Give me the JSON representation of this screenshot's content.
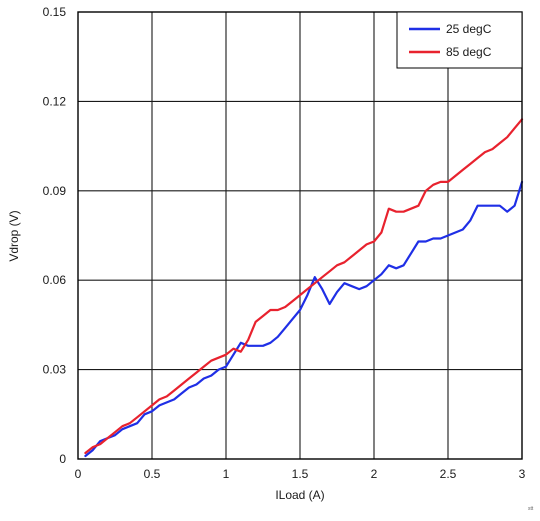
{
  "chart_data": {
    "type": "line",
    "title": "",
    "xlabel": "ILoad (A)",
    "ylabel": "Vdrop (V)",
    "xlim": [
      0,
      3
    ],
    "ylim": [
      0,
      0.15
    ],
    "xticks": [
      0,
      0.5,
      1,
      1.5,
      2,
      2.5,
      3
    ],
    "xtick_labels": [
      "0",
      "0.5",
      "1",
      "1.5",
      "2",
      "2.5",
      "3"
    ],
    "yticks": [
      0,
      0.03,
      0.06,
      0.09,
      0.12,
      0.15
    ],
    "ytick_labels": [
      "0",
      "0.03",
      "0.06",
      "0.09",
      "0.12",
      "0.15"
    ],
    "grid": true,
    "legend_position": "top-right",
    "corner_code": "stt",
    "series": [
      {
        "name": "25 degC",
        "color": "#1f2fe6",
        "x": [
          0.05,
          0.1,
          0.15,
          0.2,
          0.25,
          0.3,
          0.35,
          0.4,
          0.45,
          0.5,
          0.55,
          0.6,
          0.65,
          0.7,
          0.75,
          0.8,
          0.85,
          0.9,
          0.95,
          1.0,
          1.05,
          1.1,
          1.15,
          1.2,
          1.25,
          1.3,
          1.35,
          1.4,
          1.45,
          1.5,
          1.55,
          1.6,
          1.65,
          1.7,
          1.75,
          1.8,
          1.85,
          1.9,
          1.95,
          2.0,
          2.05,
          2.1,
          2.15,
          2.2,
          2.25,
          2.3,
          2.35,
          2.4,
          2.45,
          2.5,
          2.55,
          2.6,
          2.65,
          2.7,
          2.75,
          2.8,
          2.85,
          2.9,
          2.95,
          3.0
        ],
        "y": [
          0.001,
          0.003,
          0.006,
          0.007,
          0.008,
          0.01,
          0.011,
          0.012,
          0.015,
          0.016,
          0.018,
          0.019,
          0.02,
          0.022,
          0.024,
          0.025,
          0.027,
          0.028,
          0.03,
          0.031,
          0.035,
          0.039,
          0.038,
          0.038,
          0.038,
          0.039,
          0.041,
          0.044,
          0.047,
          0.05,
          0.055,
          0.061,
          0.057,
          0.052,
          0.056,
          0.059,
          0.058,
          0.057,
          0.058,
          0.06,
          0.062,
          0.065,
          0.064,
          0.065,
          0.069,
          0.073,
          0.073,
          0.074,
          0.074,
          0.075,
          0.076,
          0.077,
          0.08,
          0.085,
          0.085,
          0.085,
          0.085,
          0.083,
          0.085,
          0.093
        ]
      },
      {
        "name": "85 degC",
        "color": "#e8222e",
        "x": [
          0.05,
          0.1,
          0.15,
          0.2,
          0.25,
          0.3,
          0.35,
          0.4,
          0.45,
          0.5,
          0.55,
          0.6,
          0.65,
          0.7,
          0.75,
          0.8,
          0.85,
          0.9,
          0.95,
          1.0,
          1.05,
          1.1,
          1.15,
          1.2,
          1.25,
          1.3,
          1.35,
          1.4,
          1.45,
          1.5,
          1.55,
          1.6,
          1.65,
          1.7,
          1.75,
          1.8,
          1.85,
          1.9,
          1.95,
          2.0,
          2.05,
          2.1,
          2.15,
          2.2,
          2.25,
          2.3,
          2.35,
          2.4,
          2.45,
          2.5,
          2.55,
          2.6,
          2.65,
          2.7,
          2.75,
          2.8,
          2.85,
          2.9,
          2.95,
          3.0
        ],
        "y": [
          0.002,
          0.004,
          0.005,
          0.007,
          0.009,
          0.011,
          0.012,
          0.014,
          0.016,
          0.018,
          0.02,
          0.021,
          0.023,
          0.025,
          0.027,
          0.029,
          0.031,
          0.033,
          0.034,
          0.035,
          0.037,
          0.036,
          0.04,
          0.046,
          0.048,
          0.05,
          0.05,
          0.051,
          0.053,
          0.055,
          0.057,
          0.059,
          0.061,
          0.063,
          0.065,
          0.066,
          0.068,
          0.07,
          0.072,
          0.073,
          0.076,
          0.084,
          0.083,
          0.083,
          0.084,
          0.085,
          0.09,
          0.092,
          0.093,
          0.093,
          0.095,
          0.097,
          0.099,
          0.101,
          0.103,
          0.104,
          0.106,
          0.108,
          0.111,
          0.114
        ]
      }
    ]
  }
}
